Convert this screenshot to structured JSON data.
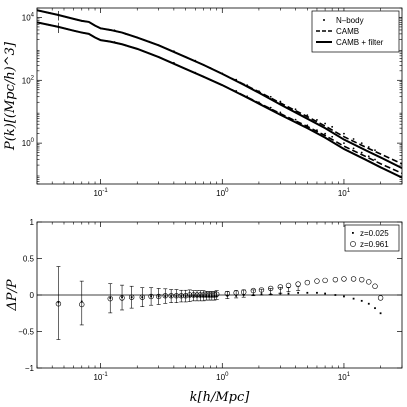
{
  "chart_data": [
    {
      "type": "line",
      "xscale": "log",
      "yscale": "log",
      "xlim": [
        0.03,
        30
      ],
      "ylim": [
        0.05,
        20000
      ],
      "ylabel": "P(k)[(Mpc/h)^3]",
      "xticks": [
        {
          "value": 0.1,
          "label": "10^-1"
        },
        {
          "value": 1,
          "label": "10^0"
        },
        {
          "value": 10,
          "label": "10^1"
        }
      ],
      "yticks": [
        {
          "value": 1,
          "label": "10^0"
        },
        {
          "value": 100,
          "label": "10^2"
        },
        {
          "value": 10000,
          "label": "10^4"
        }
      ],
      "legend": {
        "placement": "top-right",
        "entries": [
          "N–body",
          "CAMB",
          "CAMB + filter"
        ]
      },
      "series": [
        {
          "name": "CAMB + filter",
          "style": "solid",
          "x": [
            0.03,
            0.045,
            0.06,
            0.07,
            0.08,
            0.09,
            0.1,
            0.12,
            0.15,
            0.2,
            0.3,
            0.5,
            0.7,
            1,
            1.5,
            2,
            3,
            5,
            7,
            10,
            15,
            20,
            30
          ],
          "y": [
            17000,
            12000,
            9000,
            7800,
            7200,
            5500,
            4500,
            4000,
            3300,
            2300,
            1300,
            550,
            310,
            160,
            72,
            40,
            17,
            6,
            3,
            1.3,
            0.6,
            0.35,
            0.16
          ]
        },
        {
          "name": "CAMB + filter",
          "style": "solid",
          "x": [
            0.03,
            0.045,
            0.06,
            0.07,
            0.08,
            0.09,
            0.1,
            0.12,
            0.15,
            0.2,
            0.3,
            0.5,
            0.7,
            1,
            1.5,
            2,
            3,
            5,
            7,
            10,
            15,
            20,
            30
          ],
          "y": [
            7000,
            5000,
            3800,
            3300,
            3000,
            2300,
            1900,
            1700,
            1400,
            1000,
            550,
            230,
            130,
            70,
            32,
            18,
            8,
            3,
            1.5,
            0.65,
            0.3,
            0.17,
            0.08
          ]
        },
        {
          "name": "CAMB",
          "style": "dashed",
          "x": [
            0.03,
            0.045,
            0.06,
            0.07,
            0.08,
            0.09,
            0.1,
            0.12,
            0.15,
            0.2,
            0.3,
            0.5,
            0.7,
            1,
            1.5,
            2,
            3,
            5,
            7,
            10,
            15,
            20,
            30
          ],
          "y": [
            17000,
            12000,
            9000,
            7800,
            7200,
            5500,
            4500,
            4000,
            3300,
            2300,
            1300,
            550,
            310,
            160,
            75,
            43,
            19,
            7,
            3.5,
            1.6,
            0.75,
            0.45,
            0.22
          ]
        },
        {
          "name": "CAMB",
          "style": "dashed",
          "x": [
            0.03,
            0.045,
            0.06,
            0.07,
            0.08,
            0.09,
            0.1,
            0.12,
            0.15,
            0.2,
            0.3,
            0.5,
            0.7,
            1,
            1.5,
            2,
            3,
            5,
            7,
            10,
            15,
            20,
            30
          ],
          "y": [
            7000,
            5000,
            3800,
            3300,
            3000,
            2300,
            1900,
            1700,
            1400,
            1000,
            550,
            230,
            130,
            70,
            33,
            19,
            8.7,
            3.4,
            1.75,
            0.8,
            0.38,
            0.22,
            0.11
          ]
        },
        {
          "name": "N–body",
          "style": "points",
          "x": [
            0.045,
            0.07,
            0.1,
            0.13,
            0.16,
            0.2,
            0.25,
            0.3,
            0.4,
            0.5,
            0.6,
            0.7,
            0.8,
            1,
            1.3,
            1.6,
            2,
            2.5,
            3,
            4,
            5,
            6,
            7,
            8,
            10,
            12,
            14,
            16,
            18
          ],
          "y": [
            12000,
            7800,
            4500,
            3900,
            3000,
            2300,
            1700,
            1300,
            850,
            550,
            420,
            310,
            245,
            165,
            105,
            70,
            45,
            30,
            21,
            12,
            7.8,
            5.5,
            4.2,
            3.3,
            2,
            1.35,
            1,
            0.75,
            0.6
          ]
        },
        {
          "name": "N–body",
          "style": "points",
          "x": [
            0.045,
            0.07,
            0.1,
            0.13,
            0.16,
            0.2,
            0.25,
            0.3,
            0.4,
            0.5,
            0.6,
            0.7,
            0.8,
            1,
            1.3,
            1.6,
            2,
            2.5,
            3,
            4,
            5,
            6,
            7,
            8,
            10,
            12,
            14,
            16,
            18
          ],
          "y": [
            5000,
            3300,
            1900,
            1650,
            1300,
            1000,
            720,
            550,
            360,
            230,
            175,
            130,
            103,
            70,
            46,
            31,
            20,
            13.5,
            9.5,
            5.6,
            3.7,
            2.6,
            2,
            1.6,
            1,
            0.68,
            0.5,
            0.38,
            0.3
          ]
        }
      ]
    },
    {
      "type": "scatter",
      "xscale": "log",
      "xlim": [
        0.03,
        30
      ],
      "ylim": [
        -1,
        1
      ],
      "xlabel": "k[h/Mpc]",
      "ylabel": "ΔP/P",
      "xticks": [
        {
          "value": 0.1,
          "label": "10^-1"
        },
        {
          "value": 1,
          "label": "10^0"
        },
        {
          "value": 10,
          "label": "10^1"
        }
      ],
      "yticks": [
        {
          "value": -1,
          "label": "−1"
        },
        {
          "value": -0.5,
          "label": "−0.5"
        },
        {
          "value": 0,
          "label": "0"
        },
        {
          "value": 0.5,
          "label": "0.5"
        },
        {
          "value": 1,
          "label": "1"
        }
      ],
      "legend": {
        "placement": "top-right",
        "entries": [
          "z=0.025",
          "z=0.961"
        ]
      },
      "series": [
        {
          "name": "z=0.025",
          "marker": "dot",
          "x": [
            0.045,
            0.07,
            0.12,
            0.15,
            0.18,
            0.22,
            0.26,
            0.3,
            0.34,
            0.38,
            0.42,
            0.46,
            0.5,
            0.54,
            0.58,
            0.62,
            0.66,
            0.7,
            0.74,
            0.78,
            0.82,
            0.86,
            0.9,
            1.1,
            1.3,
            1.5,
            1.8,
            2.1,
            2.5,
            3,
            3.5,
            4.2,
            5,
            6,
            7,
            8.5,
            10,
            12,
            14,
            16,
            18,
            20
          ],
          "y": [
            -0.1,
            -0.09,
            -0.04,
            -0.03,
            -0.03,
            -0.03,
            -0.02,
            -0.02,
            -0.02,
            -0.02,
            -0.02,
            -0.02,
            -0.02,
            -0.02,
            -0.02,
            -0.02,
            -0.02,
            -0.02,
            -0.02,
            -0.02,
            -0.02,
            -0.02,
            -0.02,
            -0.01,
            -0.01,
            0,
            0,
            0.01,
            0.01,
            0.02,
            0.02,
            0.03,
            0.03,
            0.03,
            0.02,
            0,
            -0.02,
            -0.05,
            -0.08,
            -0.12,
            -0.18,
            -0.25
          ]
        },
        {
          "name": "z=0.961",
          "marker": "circle",
          "x": [
            0.045,
            0.07,
            0.12,
            0.15,
            0.18,
            0.22,
            0.26,
            0.3,
            0.34,
            0.38,
            0.42,
            0.46,
            0.5,
            0.54,
            0.58,
            0.62,
            0.66,
            0.7,
            0.74,
            0.78,
            0.82,
            0.86,
            0.9,
            1.1,
            1.3,
            1.5,
            1.8,
            2.1,
            2.5,
            3,
            3.5,
            4.2,
            5,
            6,
            7,
            8.5,
            10,
            12,
            14,
            16,
            18,
            20
          ],
          "y": [
            -0.12,
            -0.13,
            -0.05,
            -0.04,
            -0.03,
            -0.03,
            -0.02,
            -0.02,
            -0.01,
            -0.01,
            -0.01,
            -0.01,
            -0.01,
            0,
            0,
            0,
            0,
            0,
            0,
            0,
            0,
            0,
            0.01,
            0.02,
            0.03,
            0.04,
            0.06,
            0.07,
            0.09,
            0.11,
            0.13,
            0.15,
            0.17,
            0.19,
            0.2,
            0.21,
            0.22,
            0.22,
            0.21,
            0.18,
            0.12,
            -0.04
          ]
        }
      ],
      "error_bars": {
        "x": [
          0.045,
          0.07,
          0.12,
          0.15,
          0.18,
          0.22,
          0.26,
          0.3,
          0.34,
          0.38,
          0.42,
          0.46,
          0.5,
          0.54,
          0.58,
          0.62,
          0.66,
          0.7,
          0.74,
          0.78,
          0.82,
          0.86,
          0.9,
          1.1,
          1.3,
          1.5,
          1.8,
          2.1,
          2.5,
          3,
          3.5,
          4.2
        ],
        "center": [
          -0.11,
          -0.11,
          -0.045,
          -0.035,
          -0.03,
          -0.03,
          -0.02,
          -0.02,
          -0.015,
          -0.015,
          -0.015,
          -0.015,
          -0.015,
          -0.01,
          -0.01,
          -0.01,
          -0.01,
          -0.01,
          -0.01,
          -0.01,
          -0.01,
          -0.01,
          0,
          0,
          0.01,
          0.02,
          0.03,
          0.04,
          0.05,
          0.065,
          0.075,
          0.09
        ],
        "err": [
          0.5,
          0.3,
          0.2,
          0.17,
          0.15,
          0.13,
          0.12,
          0.11,
          0.1,
          0.09,
          0.09,
          0.08,
          0.08,
          0.08,
          0.07,
          0.07,
          0.07,
          0.07,
          0.06,
          0.06,
          0.06,
          0.06,
          0.06,
          0.05,
          0.05,
          0.05,
          0.04,
          0.04,
          0.04,
          0.04,
          0.03,
          0.03
        ]
      }
    }
  ]
}
